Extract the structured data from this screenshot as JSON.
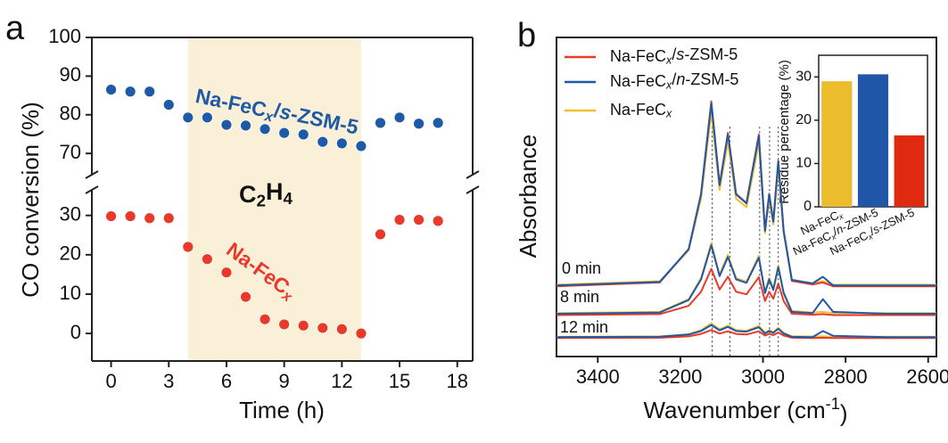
{
  "chart_data": [
    {
      "type": "scatter",
      "panel": "a",
      "x_label": "Time (h)",
      "y_label": "CO conversion (%)",
      "xlim": [
        -1,
        18.8
      ],
      "xticks": [
        0,
        3,
        6,
        9,
        12,
        15,
        18
      ],
      "y_segments": [
        {
          "ylim": [
            -7,
            36.5
          ],
          "yticks": [
            0,
            10,
            20,
            30
          ]
        },
        {
          "ylim": [
            64.5,
            100
          ],
          "yticks": [
            70,
            80,
            90,
            100
          ]
        }
      ],
      "shaded_x": [
        4,
        13
      ],
      "shade_color": "#faf0d8",
      "shade_label": [
        "C",
        "2",
        "H",
        "4"
      ],
      "x": [
        0,
        1,
        2,
        3,
        4,
        5,
        6,
        7,
        8,
        9,
        10,
        11,
        12,
        13,
        14,
        15,
        16,
        17
      ],
      "series": [
        {
          "name": [
            "Na-FeC",
            "x",
            "/",
            "s",
            "-ZSM-5"
          ],
          "color": "#1f5aa6",
          "values": [
            86.5,
            86.0,
            86.0,
            82.6,
            79.3,
            79.3,
            77.4,
            77.2,
            76.3,
            75.3,
            74.9,
            73.0,
            72.6,
            71.9,
            77.9,
            79.3,
            77.7,
            77.9
          ]
        },
        {
          "name": [
            "Na-FeC",
            "x"
          ],
          "color": "#e8392a",
          "values": [
            29.8,
            29.8,
            29.3,
            29.3,
            22.0,
            18.9,
            15.5,
            9.3,
            3.6,
            2.3,
            2.0,
            1.4,
            1.1,
            0,
            25.2,
            28.9,
            28.9,
            28.6
          ]
        }
      ]
    },
    {
      "type": "line",
      "panel": "b",
      "x_label": [
        "Wavenumber (cm",
        "-1",
        ")"
      ],
      "y_label": "Absorbance",
      "xlim": [
        3500,
        2580
      ],
      "xticks": [
        3400,
        3200,
        3000,
        2800,
        2600
      ],
      "ylim": [
        0,
        100
      ],
      "peak_lines": [
        3123,
        3080,
        3008,
        2984,
        2963
      ],
      "x": [
        3500,
        3250,
        3180,
        3150,
        3125,
        3105,
        3085,
        3065,
        3040,
        3010,
        2995,
        2985,
        2975,
        2963,
        2950,
        2930,
        2880,
        2855,
        2830,
        2700,
        2580
      ],
      "series": [
        {
          "name": [
            "Na-FeC",
            "x",
            "/",
            "s",
            "-ZSM-5"
          ],
          "color": "#e8392a"
        },
        {
          "name": [
            "Na-FeC",
            "x",
            "/",
            "n",
            "-ZSM-5"
          ],
          "color": "#1f5aa6"
        },
        {
          "name": [
            "Na-FeC",
            "x"
          ],
          "color": "#f0c030"
        }
      ],
      "spectra": [
        {
          "label": "0 min",
          "curves": [
            [
              22,
              23.2,
              33.6,
              51,
              80,
              53.9,
              70.1,
              51,
              48.1,
              69.6,
              39.4,
              51,
              42.3,
              61.4,
              39.4,
              23.7,
              22.6,
              23.2,
              22,
              22,
              22
            ],
            [
              22.3,
              23.4,
              33.7,
              50.8,
              79.3,
              53.7,
              69.6,
              50.8,
              48,
              69,
              39.4,
              50.8,
              42.3,
              61.1,
              39.4,
              24,
              22.9,
              25,
              22.3,
              22.3,
              22.3
            ],
            [
              22.5,
              23.6,
              33.3,
              49.5,
              76.5,
              52.2,
              67.3,
              49.5,
              46.8,
              66.8,
              38.7,
              49.5,
              41.4,
              59.2,
              38.7,
              24.1,
              23,
              23.6,
              22.5,
              22.5,
              22.5
            ]
          ]
        },
        {
          "label": "8 min",
          "curves": [
            [
              13,
              13.3,
              15.9,
              20.3,
              27.5,
              21,
              25,
              20.3,
              19.5,
              24.9,
              17.4,
              20.3,
              18.1,
              22.9,
              17.4,
              13.4,
              13.1,
              13.3,
              13,
              13,
              13
            ],
            [
              13.4,
              13.8,
              17.7,
              24.2,
              34.9,
              25.2,
              31.2,
              24.2,
              23.1,
              31,
              19.9,
              24.2,
              20.9,
              28,
              19.9,
              14,
              13.6,
              18,
              14,
              13.4,
              13.4
            ],
            [
              13.6,
              14,
              18,
              24.6,
              35.6,
              25.7,
              31.9,
              24.6,
              23.5,
              31.6,
              20.2,
              24.6,
              21.3,
              28.6,
              20.2,
              14.3,
              13.8,
              14,
              13.6,
              13.6,
              13.6
            ]
          ]
        },
        {
          "label": "12 min",
          "curves": [
            [
              5.8,
              5.9,
              6.3,
              7.1,
              8.3,
              7.2,
              7.9,
              7.1,
              6.9,
              7.9,
              6.6,
              7.1,
              6.7,
              7.5,
              6.6,
              5.9,
              5.8,
              5.9,
              5.8,
              5.8,
              5.8
            ],
            [
              6.1,
              6.2,
              6.9,
              8,
              9.9,
              8.2,
              9.3,
              8,
              7.8,
              9.2,
              7.2,
              8,
              7.4,
              8.7,
              7.2,
              6.2,
              6.1,
              8,
              6.5,
              6.1,
              6.1
            ],
            [
              6.2,
              6.3,
              7,
              8.3,
              10.4,
              8.5,
              9.7,
              8.3,
              8.1,
              9.6,
              7.5,
              8.3,
              7.7,
              9,
              7.5,
              6.3,
              6.3,
              6.3,
              6.2,
              6.2,
              6.2
            ]
          ]
        }
      ]
    },
    {
      "type": "bar",
      "y_label": "Residue percentage (%)",
      "categories": [
        [
          "Na-FeC",
          "x"
        ],
        [
          "Na-FeC",
          "x",
          "/",
          "n",
          "-ZSM-5"
        ],
        [
          "Na-FeC",
          "x",
          "/",
          "s",
          "-ZSM-5"
        ]
      ],
      "values": [
        29,
        30.6,
        16.5
      ],
      "colors": [
        "#ebbd2c",
        "#1f56a8",
        "#e02a10"
      ],
      "ylim": [
        0,
        35
      ],
      "yticks": [
        0,
        10,
        20,
        30
      ]
    }
  ]
}
